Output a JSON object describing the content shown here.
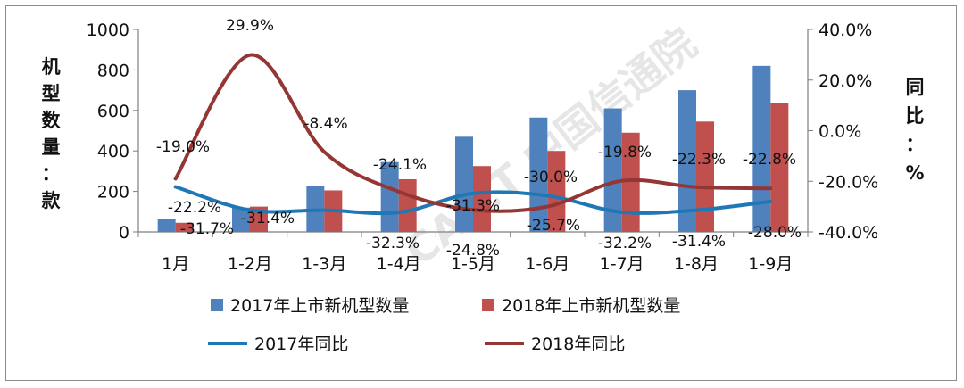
{
  "chart_data": {
    "type": "bar+line",
    "categories": [
      "1月",
      "1-2月",
      "1-3月",
      "1-4月",
      "1-5月",
      "1-6月",
      "1-7月",
      "1-8月",
      "1-9月"
    ],
    "bar_series": [
      {
        "name": "2017年上市新机型数量",
        "color": "#4f81bd",
        "values": [
          65,
          120,
          225,
          345,
          470,
          565,
          610,
          700,
          820
        ]
      },
      {
        "name": "2018年上市新机型数量",
        "color": "#c0504d",
        "values": [
          45,
          125,
          205,
          260,
          325,
          400,
          490,
          545,
          635
        ]
      }
    ],
    "line_series": [
      {
        "name": "2017年同比",
        "color": "#1f77b4",
        "values": [
          -22.2,
          -31.4,
          -31.4,
          -32.3,
          -24.8,
          -25.7,
          -32.2,
          -31.4,
          -28.0
        ],
        "labels": [
          "-22.2%",
          "-31.4%",
          "-31.4%",
          "-32.3%",
          "-24.8%",
          "-25.7%",
          "-32.2%",
          "-31.4%",
          "-28.0%"
        ]
      },
      {
        "name": "2018年同比",
        "color": "#943634",
        "values": [
          -19.0,
          29.9,
          -8.4,
          -24.1,
          -31.3,
          -30.0,
          -19.8,
          -22.3,
          -22.8
        ],
        "labels": [
          "-19.0%",
          "29.9%",
          "-8.4%",
          "-24.1%",
          "-31.3%",
          "-30.0%",
          "-19.8%",
          "-22.3%",
          "-22.8%"
        ]
      }
    ],
    "extra_labels": [
      "-31.7%"
    ],
    "left_axis": {
      "label": "机型数量：款",
      "ylim": [
        0,
        1000
      ],
      "ticks": [
        "0",
        "200",
        "400",
        "600",
        "800",
        "1000"
      ]
    },
    "right_axis": {
      "label": "同比：%",
      "ylim": [
        -40,
        40
      ],
      "ticks": [
        "-40.0%",
        "-20.0%",
        "0.0%",
        "20.0%",
        "40.0%"
      ]
    },
    "legend_position": "bottom"
  },
  "watermark": "CAICT 中国信通院"
}
